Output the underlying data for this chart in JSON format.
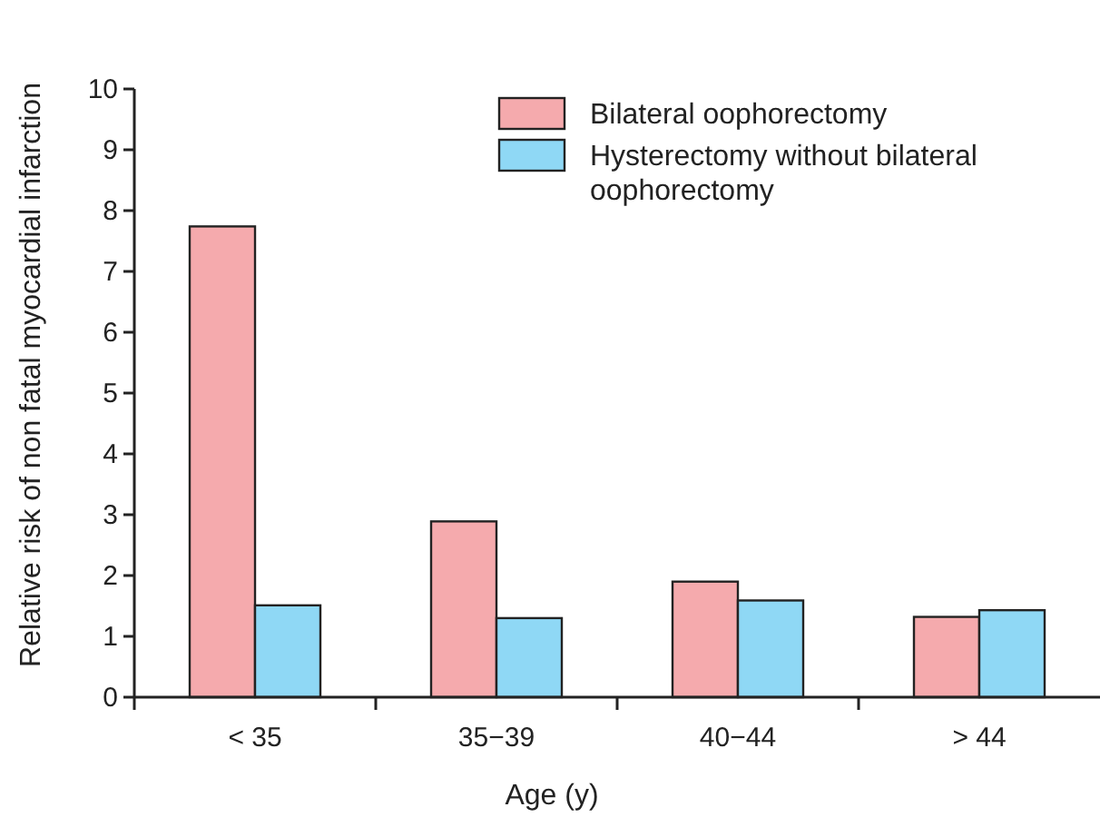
{
  "chart_data": {
    "type": "bar",
    "xlabel": "Age (y)",
    "ylabel": "Relative risk of non fatal myocardial infarction",
    "categories": [
      "< 35",
      "35−39",
      "40−44",
      "> 44"
    ],
    "series": [
      {
        "name": "Bilateral oophorectomy",
        "color": "#f5aaad",
        "values": [
          7.74,
          2.89,
          1.9,
          1.32
        ]
      },
      {
        "name": "Hysterectomy without bilateral oophorectomy",
        "color": "#8fd8f5",
        "values": [
          1.51,
          1.3,
          1.59,
          1.43
        ]
      }
    ],
    "ylim": [
      0,
      10
    ],
    "yticks": [
      0,
      1,
      2,
      3,
      4,
      5,
      6,
      7,
      8,
      9,
      10
    ],
    "legend": "top right"
  }
}
